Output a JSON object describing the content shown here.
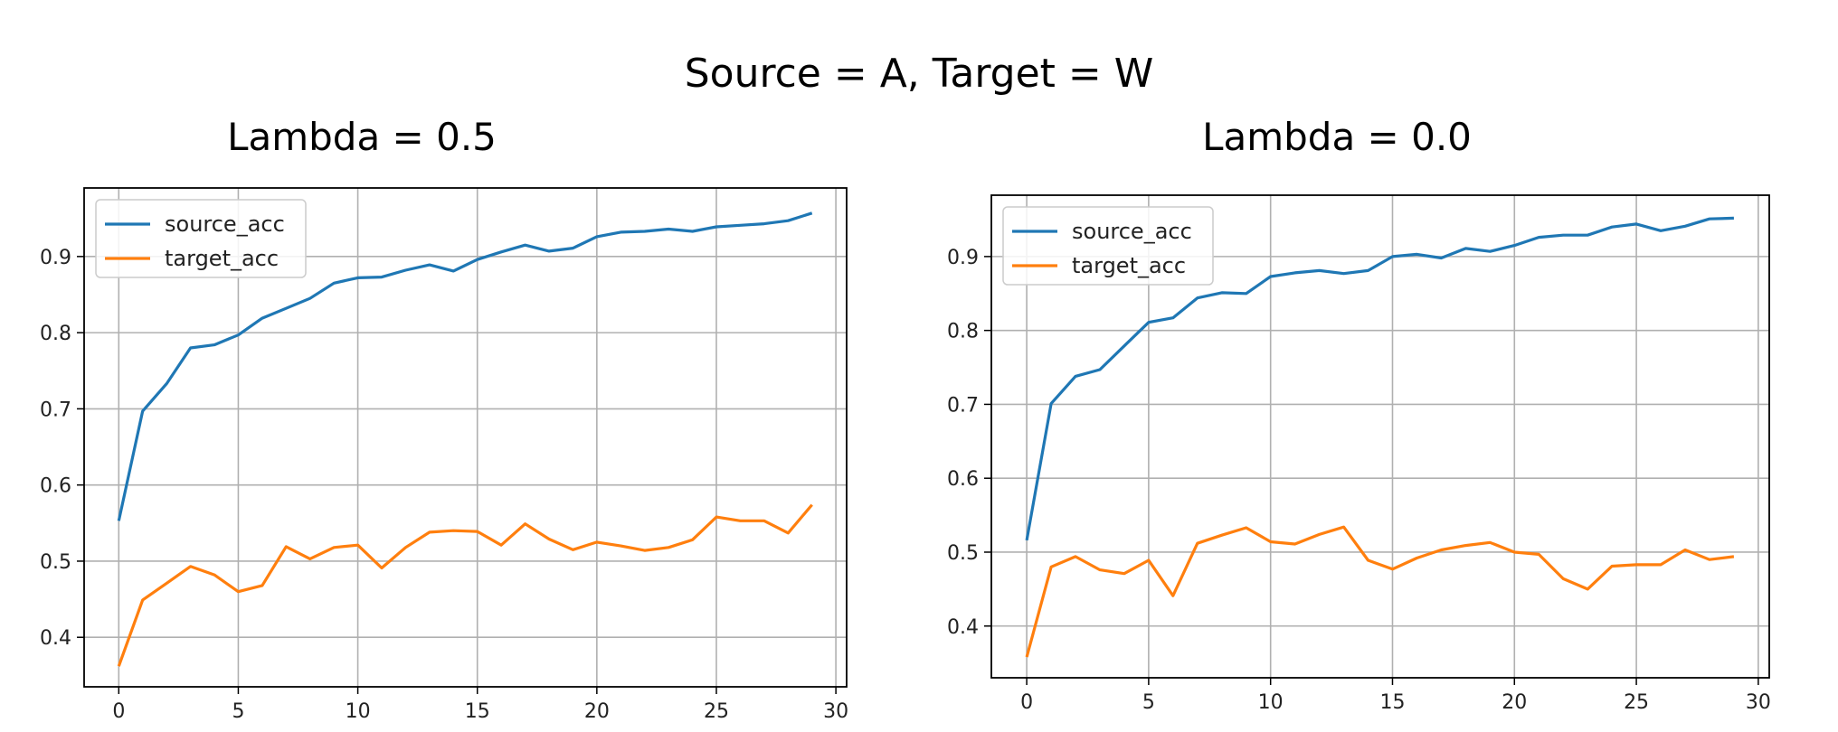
{
  "figure": {
    "title": "Source = A, Target = W"
  },
  "chart_data": [
    {
      "type": "line",
      "title": "Lambda = 0.5",
      "xlabel": "",
      "ylabel": "",
      "xlim": [
        -1.45,
        30.45
      ],
      "ylim": [
        0.335,
        0.99
      ],
      "xticks": [
        0,
        5,
        10,
        15,
        20,
        25,
        30
      ],
      "yticks": [
        0.4,
        0.5,
        0.6,
        0.7,
        0.8,
        0.9
      ],
      "grid": true,
      "legend": "upper-left",
      "x": [
        0,
        1,
        2,
        3,
        4,
        5,
        6,
        7,
        8,
        9,
        10,
        11,
        12,
        13,
        14,
        15,
        16,
        17,
        18,
        19,
        20,
        21,
        22,
        23,
        24,
        25,
        26,
        27,
        28,
        29
      ],
      "series": [
        {
          "name": "source_acc",
          "color": "#1f77b4",
          "values": [
            0.553,
            0.697,
            0.733,
            0.78,
            0.784,
            0.797,
            0.819,
            0.832,
            0.845,
            0.865,
            0.872,
            0.873,
            0.882,
            0.889,
            0.881,
            0.896,
            0.906,
            0.915,
            0.907,
            0.911,
            0.926,
            0.932,
            0.933,
            0.936,
            0.933,
            0.939,
            0.941,
            0.943,
            0.947,
            0.957
          ]
        },
        {
          "name": "target_acc",
          "color": "#ff7f0e",
          "values": [
            0.362,
            0.449,
            0.471,
            0.493,
            0.482,
            0.46,
            0.468,
            0.519,
            0.503,
            0.518,
            0.521,
            0.491,
            0.518,
            0.538,
            0.54,
            0.539,
            0.521,
            0.549,
            0.529,
            0.515,
            0.525,
            0.52,
            0.514,
            0.518,
            0.528,
            0.558,
            0.553,
            0.553,
            0.537,
            0.574
          ]
        }
      ]
    },
    {
      "type": "line",
      "title": "Lambda = 0.0",
      "xlabel": "",
      "ylabel": "",
      "xlim": [
        -1.45,
        30.45
      ],
      "ylim": [
        0.33,
        0.983
      ],
      "xticks": [
        0,
        5,
        10,
        15,
        20,
        25,
        30
      ],
      "yticks": [
        0.4,
        0.5,
        0.6,
        0.7,
        0.8,
        0.9
      ],
      "grid": true,
      "legend": "upper-left",
      "x": [
        0,
        1,
        2,
        3,
        4,
        5,
        6,
        7,
        8,
        9,
        10,
        11,
        12,
        13,
        14,
        15,
        16,
        17,
        18,
        19,
        20,
        21,
        22,
        23,
        24,
        25,
        26,
        27,
        28,
        29
      ],
      "series": [
        {
          "name": "source_acc",
          "color": "#1f77b4",
          "values": [
            0.516,
            0.701,
            0.738,
            0.747,
            0.779,
            0.811,
            0.817,
            0.844,
            0.851,
            0.85,
            0.873,
            0.878,
            0.881,
            0.877,
            0.881,
            0.9,
            0.903,
            0.898,
            0.911,
            0.907,
            0.915,
            0.926,
            0.929,
            0.929,
            0.94,
            0.944,
            0.935,
            0.941,
            0.951,
            0.952
          ]
        },
        {
          "name": "target_acc",
          "color": "#ff7f0e",
          "values": [
            0.358,
            0.48,
            0.494,
            0.476,
            0.471,
            0.489,
            0.441,
            0.512,
            0.523,
            0.533,
            0.514,
            0.511,
            0.524,
            0.534,
            0.489,
            0.477,
            0.492,
            0.503,
            0.509,
            0.513,
            0.5,
            0.497,
            0.464,
            0.45,
            0.481,
            0.483,
            0.483,
            0.503,
            0.49,
            0.494
          ]
        }
      ]
    }
  ]
}
